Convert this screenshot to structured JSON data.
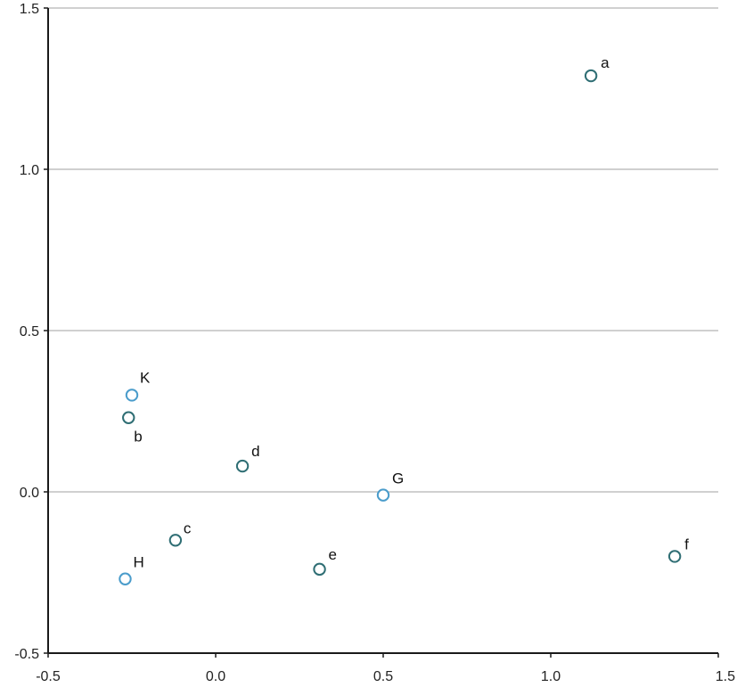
{
  "chart_data": {
    "type": "scatter",
    "title": "",
    "xlabel": "",
    "ylabel": "",
    "xlim": [
      -0.5,
      1.5
    ],
    "ylim": [
      -0.5,
      1.5
    ],
    "xticks": [
      "-0.5",
      "0.0",
      "0.5",
      "1.0",
      "1.5"
    ],
    "yticks": [
      "-0.5",
      "0.0",
      "0.5",
      "1.0",
      "1.5"
    ],
    "grid": "horizontal",
    "series": [
      {
        "color": "#4a9ccb",
        "points": [
          {
            "label": "K",
            "x": -0.25,
            "y": 0.3
          },
          {
            "label": "G",
            "x": 0.5,
            "y": -0.01
          },
          {
            "label": "H",
            "x": -0.27,
            "y": -0.27
          }
        ]
      },
      {
        "color": "#2f6e74",
        "points": [
          {
            "label": "a",
            "x": 1.12,
            "y": 1.29
          },
          {
            "label": "b",
            "x": -0.26,
            "y": 0.23
          },
          {
            "label": "d",
            "x": 0.08,
            "y": 0.08
          },
          {
            "label": "c",
            "x": -0.12,
            "y": -0.15
          },
          {
            "label": "e",
            "x": 0.31,
            "y": -0.24
          },
          {
            "label": "f",
            "x": 1.37,
            "y": -0.2
          }
        ]
      }
    ]
  }
}
